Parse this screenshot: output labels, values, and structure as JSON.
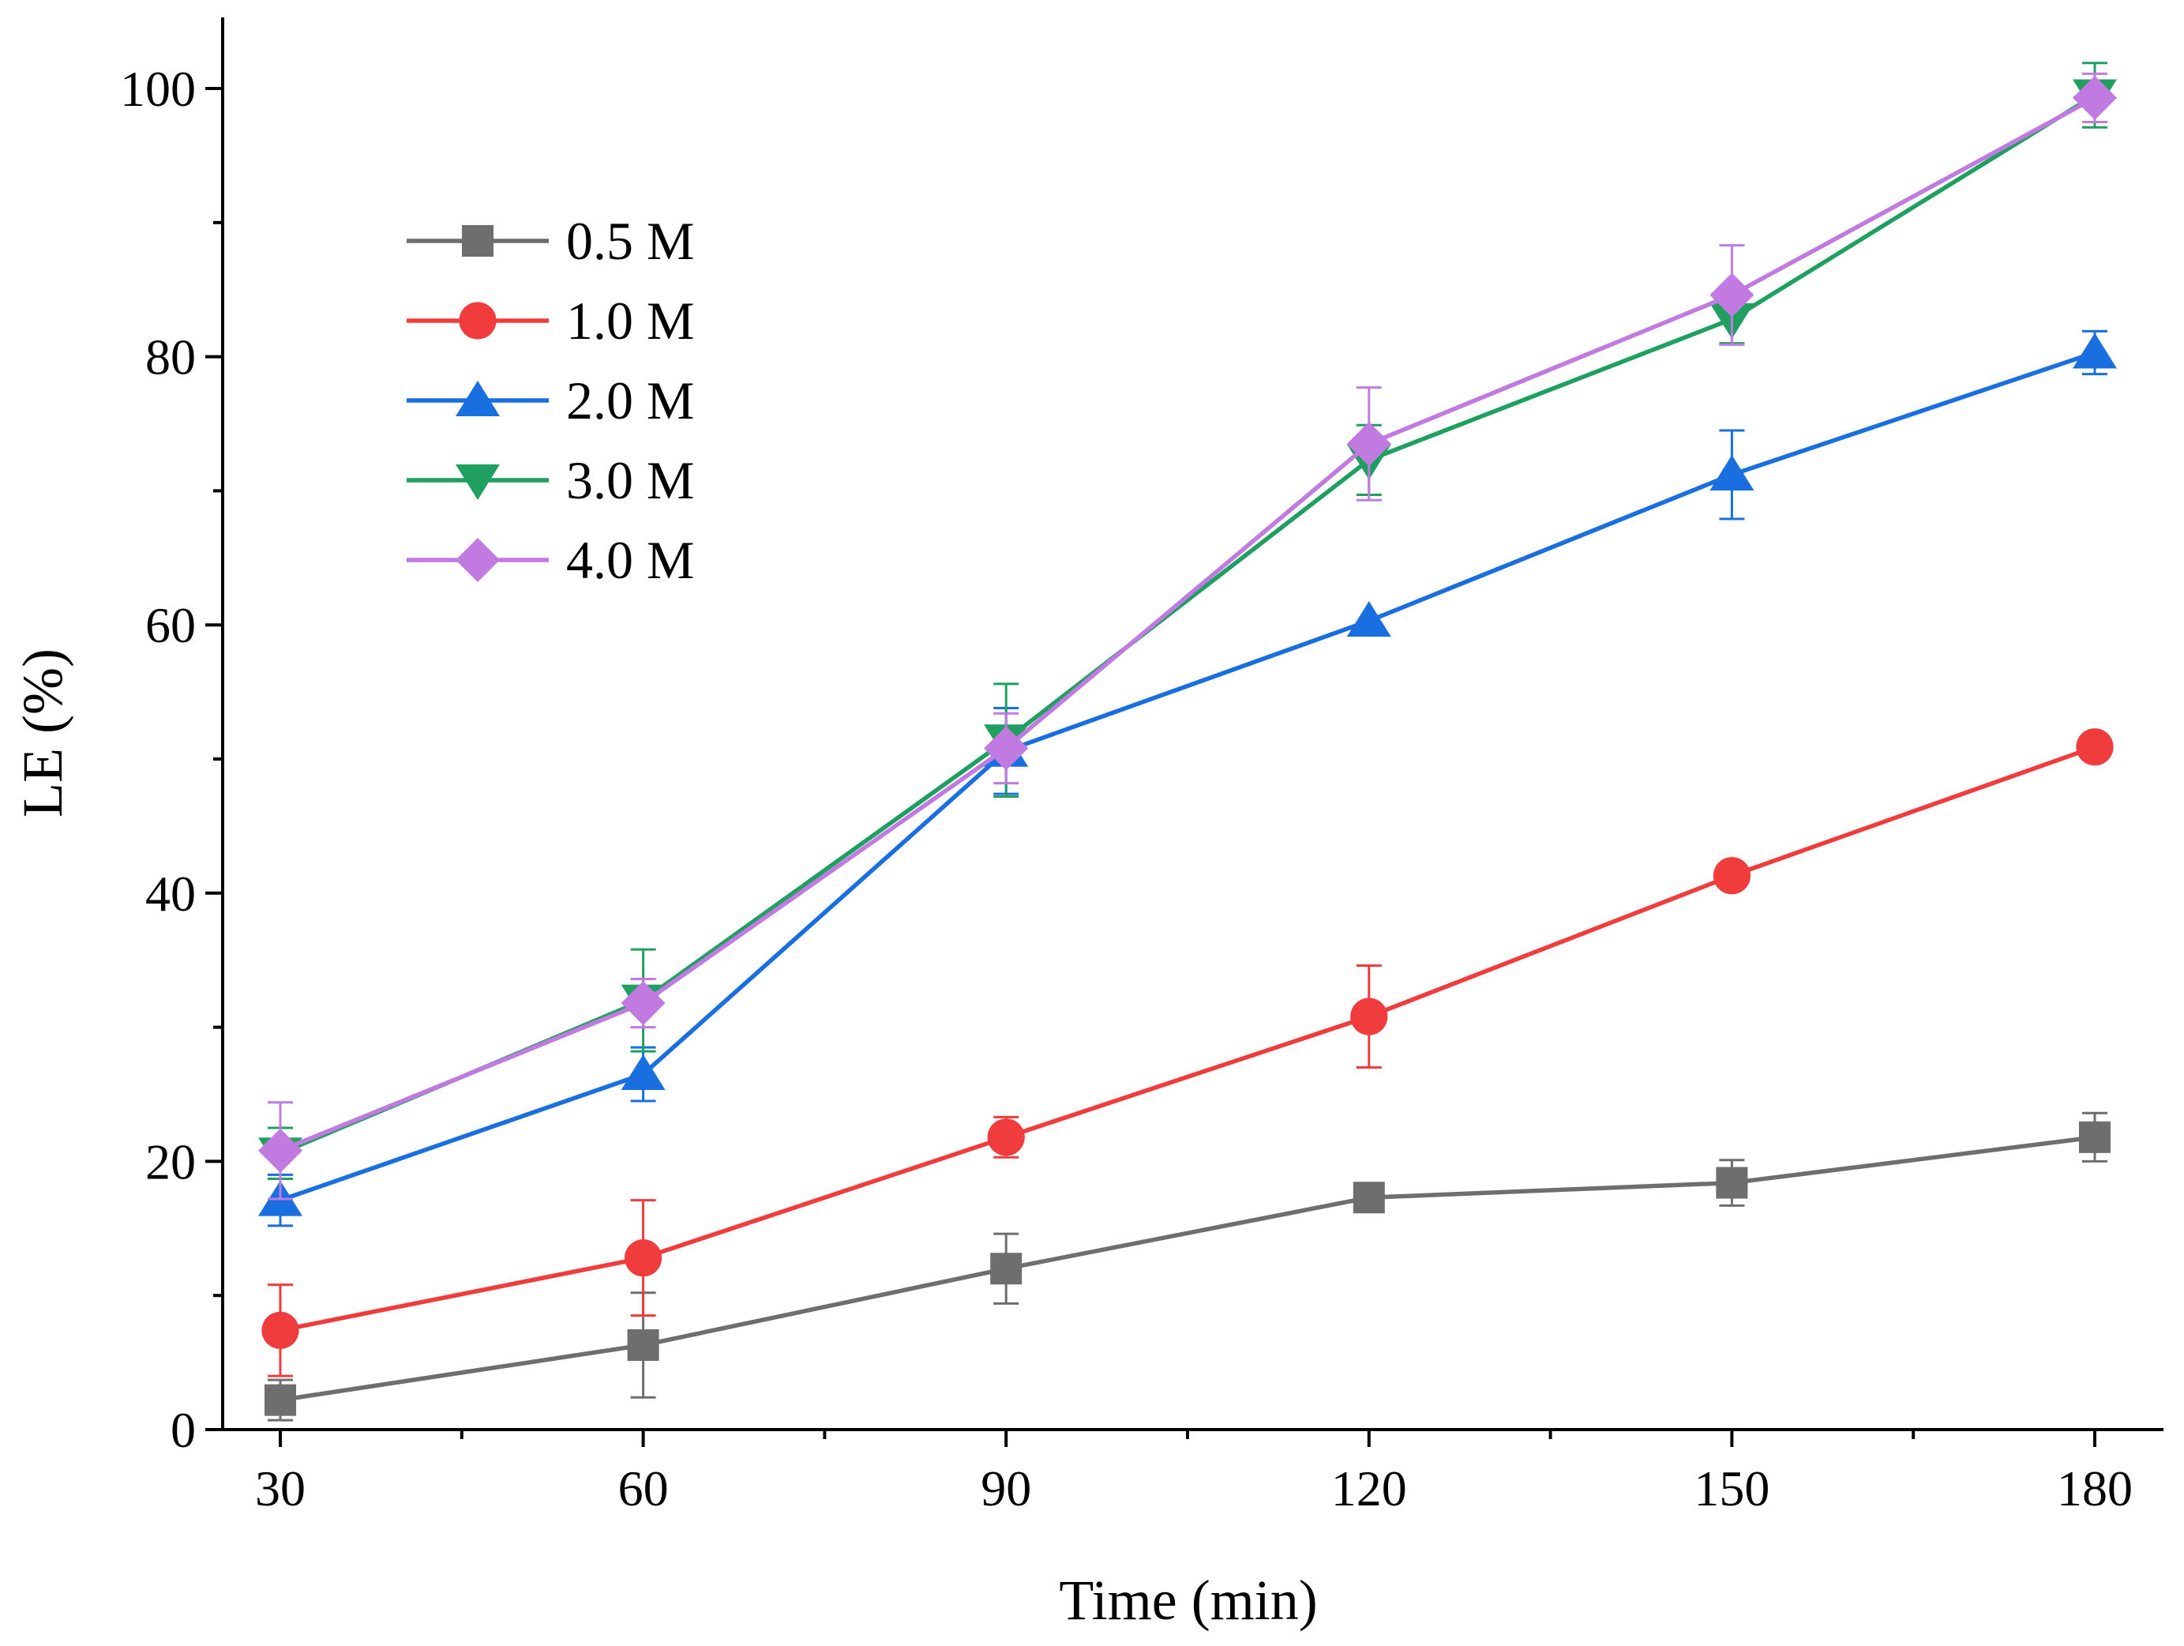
{
  "chart_data": {
    "type": "line",
    "title": "",
    "xlabel": "Time (min)",
    "ylabel": "LE (%)",
    "x": [
      30,
      60,
      90,
      120,
      150,
      180
    ],
    "x_tick_labels": [
      "30",
      "60",
      "90",
      "120",
      "150",
      "180"
    ],
    "xlim": [
      25,
      185
    ],
    "ylim": [
      0,
      100
    ],
    "y_ticks": [
      0,
      20,
      40,
      60,
      80,
      100
    ],
    "y_tick_labels": [
      "0",
      "20",
      "40",
      "60",
      "80",
      "100"
    ],
    "grid": false,
    "legend_position": "top-left",
    "series": [
      {
        "name": "0.5 M",
        "color": "#6e6e6e",
        "marker": "square",
        "values": [
          2.2,
          6.3,
          12.0,
          17.3,
          18.4,
          21.8
        ],
        "errors": [
          1.5,
          3.9,
          2.6,
          0.0,
          1.7,
          1.8
        ]
      },
      {
        "name": "1.0 M",
        "color": "#f03c3c",
        "marker": "circle",
        "values": [
          7.4,
          12.8,
          21.8,
          30.8,
          41.3,
          50.9
        ],
        "errors": [
          3.4,
          4.3,
          1.5,
          3.8,
          0.0,
          0.0
        ]
      },
      {
        "name": "2.0 M",
        "color": "#1a6fe0",
        "marker": "triangle-up",
        "values": [
          17.1,
          26.5,
          50.6,
          60.3,
          71.2,
          80.3
        ],
        "errors": [
          1.9,
          2.0,
          3.2,
          0.0,
          3.3,
          1.6
        ]
      },
      {
        "name": "3.0 M",
        "color": "#1fa060",
        "marker": "triangle-down",
        "values": [
          20.6,
          32.0,
          51.4,
          72.3,
          82.8,
          99.5
        ],
        "errors": [
          1.9,
          3.8,
          4.2,
          2.6,
          1.8,
          2.4
        ]
      },
      {
        "name": "4.0 M",
        "color": "#c07ae0",
        "marker": "diamond",
        "values": [
          20.8,
          31.8,
          50.8,
          73.5,
          84.6,
          99.3
        ],
        "errors": [
          3.6,
          1.8,
          2.6,
          4.2,
          3.7,
          1.8
        ]
      }
    ]
  }
}
